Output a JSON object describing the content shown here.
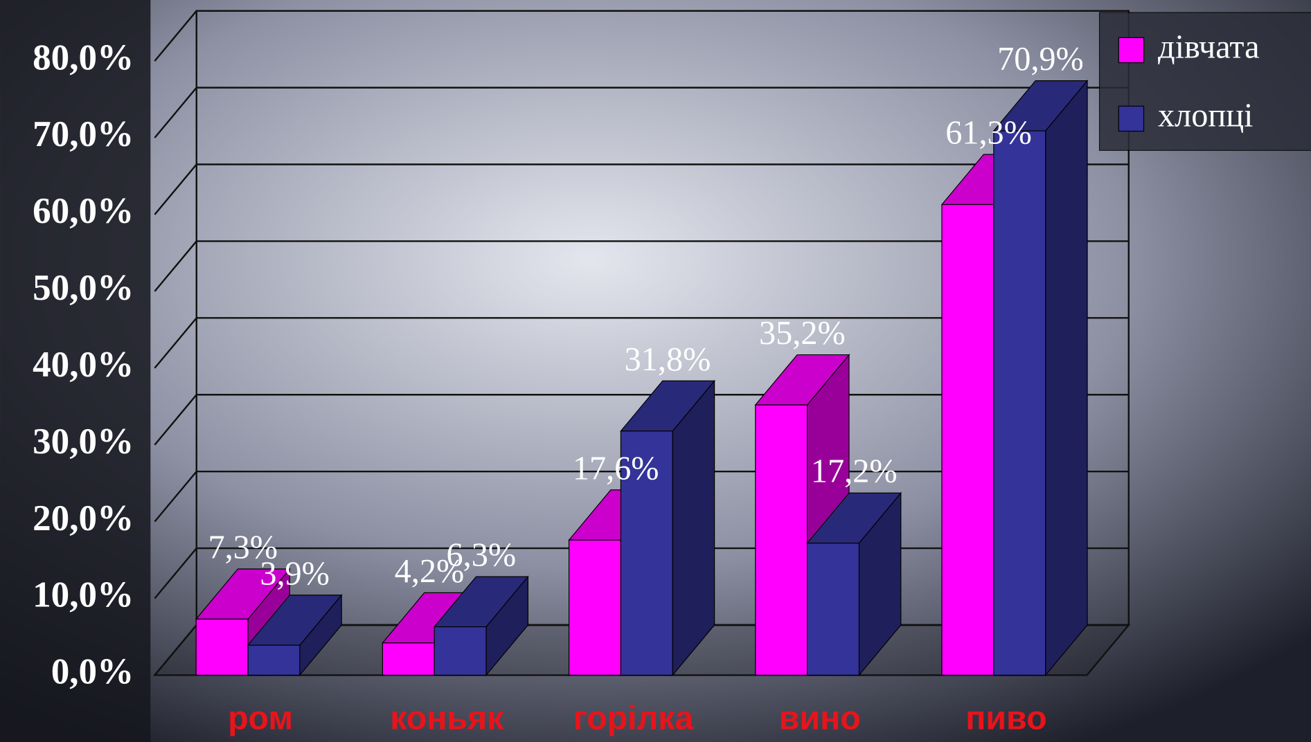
{
  "chart_data": {
    "type": "bar3d",
    "categories": [
      "ром",
      "коньяк",
      "горілка",
      "вино",
      "пиво"
    ],
    "series": [
      {
        "name": "дівчата",
        "color": "#ff00ff",
        "values": [
          7.3,
          4.2,
          17.6,
          35.2,
          61.3
        ],
        "value_labels": [
          "7,3%",
          "4,2%",
          "17,6%",
          "35,2%",
          "61,3%"
        ]
      },
      {
        "name": "хлопці",
        "color": "#333399",
        "values": [
          3.9,
          6.3,
          31.8,
          17.2,
          70.9
        ],
        "value_labels": [
          "3,9%",
          "6,3%",
          "31,8%",
          "17,2%",
          "70,9%"
        ]
      }
    ],
    "ylim": [
      0,
      80
    ],
    "yticks": [
      {
        "value": 0,
        "label": "0,0%"
      },
      {
        "value": 10,
        "label": "10,0%"
      },
      {
        "value": 20,
        "label": "20,0%"
      },
      {
        "value": 30,
        "label": "30,0%"
      },
      {
        "value": 40,
        "label": "40,0%"
      },
      {
        "value": 50,
        "label": "50,0%"
      },
      {
        "value": 60,
        "label": "60,0%"
      },
      {
        "value": 70,
        "label": "70,0%"
      },
      {
        "value": 80,
        "label": "80,0%"
      }
    ],
    "grid": true,
    "legend": "top-right"
  }
}
